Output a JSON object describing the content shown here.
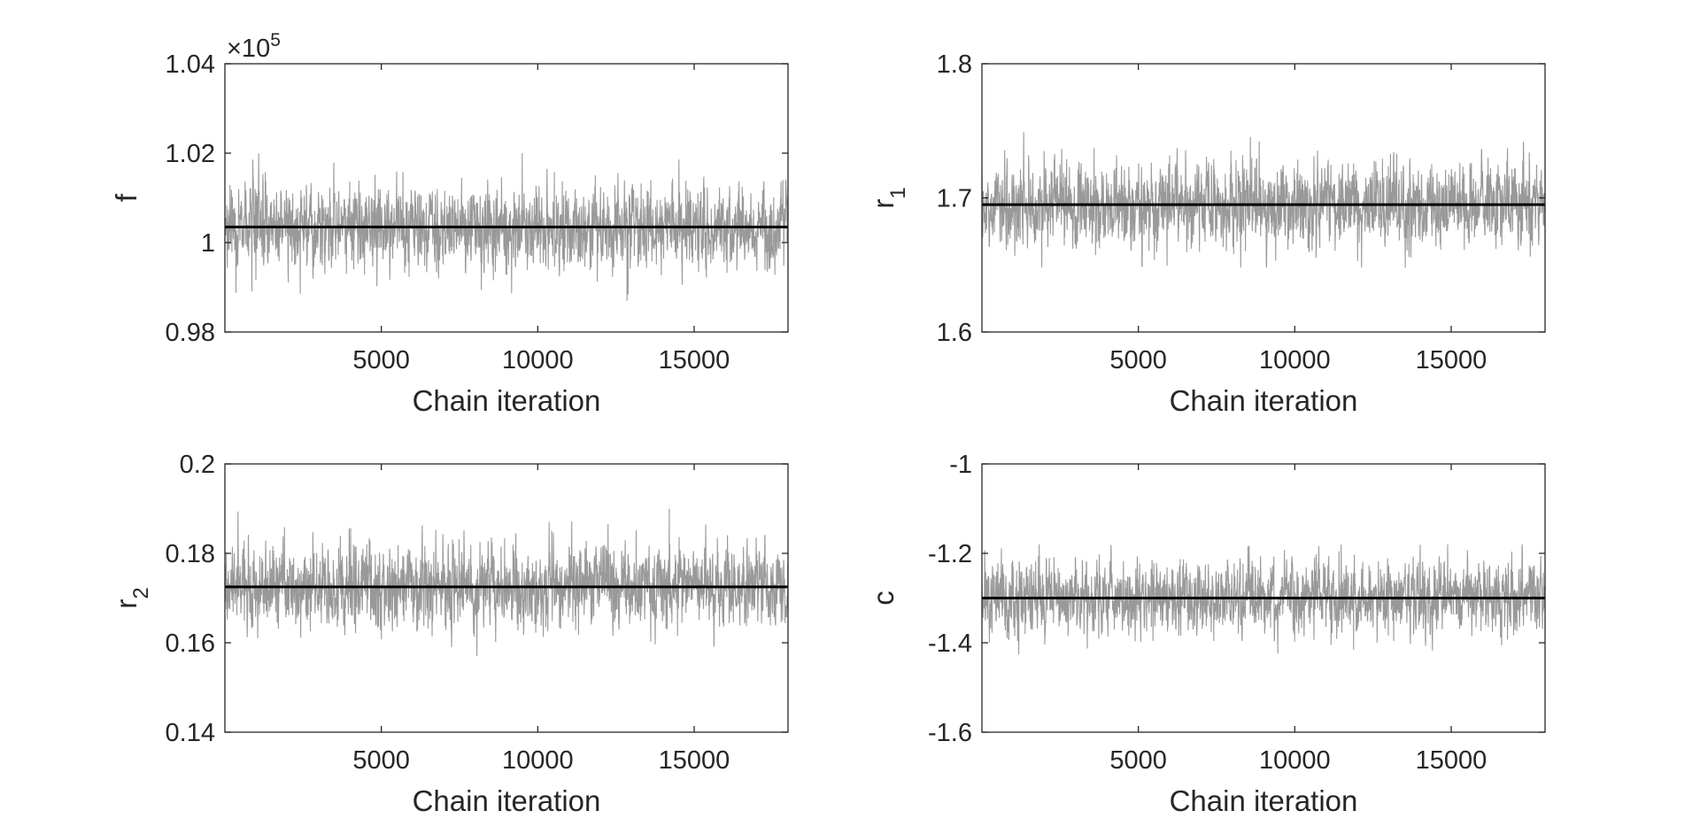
{
  "chart_data": [
    {
      "type": "line",
      "ylabel": "f",
      "ylabel_subscript": "",
      "xlabel": "Chain iteration",
      "exponent_label": {
        "base": "×10",
        "power": "5"
      },
      "x_range": [
        0,
        18000
      ],
      "ylim": [
        0.98,
        1.04
      ],
      "xticks": [
        5000,
        10000,
        15000
      ],
      "xtick_labels": [
        "5000",
        "10000",
        "15000"
      ],
      "yticks": [
        0.98,
        1.0,
        1.02,
        1.04
      ],
      "ytick_labels": [
        "0.98",
        "1",
        "1.02",
        "1.04"
      ],
      "grid": false,
      "series": [
        {
          "role": "trace",
          "color": "#999999",
          "mean": 1.0035,
          "spread": 0.0045,
          "min": 0.987,
          "max": 1.02,
          "n_samples": 18000
        },
        {
          "role": "reference",
          "color": "#000000",
          "value": 1.0035
        }
      ]
    },
    {
      "type": "line",
      "ylabel": "r",
      "ylabel_subscript": "1",
      "xlabel": "Chain iteration",
      "x_range": [
        0,
        18000
      ],
      "ylim": [
        1.6,
        1.8
      ],
      "xticks": [
        5000,
        10000,
        15000
      ],
      "xtick_labels": [
        "5000",
        "10000",
        "15000"
      ],
      "yticks": [
        1.6,
        1.7,
        1.8
      ],
      "ytick_labels": [
        "1.6",
        "1.7",
        "1.8"
      ],
      "grid": false,
      "series": [
        {
          "role": "trace",
          "color": "#999999",
          "mean": 1.695,
          "spread": 0.015,
          "min": 1.648,
          "max": 1.752,
          "n_samples": 18000
        },
        {
          "role": "reference",
          "color": "#000000",
          "value": 1.695
        }
      ]
    },
    {
      "type": "line",
      "ylabel": "r",
      "ylabel_subscript": "2",
      "xlabel": "Chain iteration",
      "x_range": [
        0,
        18000
      ],
      "ylim": [
        0.14,
        0.2
      ],
      "xticks": [
        5000,
        10000,
        15000
      ],
      "xtick_labels": [
        "5000",
        "10000",
        "15000"
      ],
      "yticks": [
        0.14,
        0.16,
        0.18,
        0.2
      ],
      "ytick_labels": [
        "0.14",
        "0.16",
        "0.18",
        "0.2"
      ],
      "grid": false,
      "series": [
        {
          "role": "trace",
          "color": "#999999",
          "mean": 0.1725,
          "spread": 0.0045,
          "min": 0.151,
          "max": 0.19,
          "n_samples": 18000
        },
        {
          "role": "reference",
          "color": "#000000",
          "value": 0.1725
        }
      ]
    },
    {
      "type": "line",
      "ylabel": "c",
      "ylabel_subscript": "",
      "xlabel": "Chain iteration",
      "x_range": [
        0,
        18000
      ],
      "ylim": [
        -1.6,
        -1.0
      ],
      "xticks": [
        5000,
        10000,
        15000
      ],
      "xtick_labels": [
        "5000",
        "10000",
        "15000"
      ],
      "yticks": [
        -1.6,
        -1.4,
        -1.2,
        -1.0
      ],
      "ytick_labels": [
        "-1.6",
        "-1.4",
        "-1.2",
        "-1"
      ],
      "grid": false,
      "series": [
        {
          "role": "trace",
          "color": "#999999",
          "mean": -1.3,
          "spread": 0.04,
          "min": -1.455,
          "max": -1.18,
          "n_samples": 18000
        },
        {
          "role": "reference",
          "color": "#000000",
          "value": -1.3
        }
      ]
    }
  ]
}
